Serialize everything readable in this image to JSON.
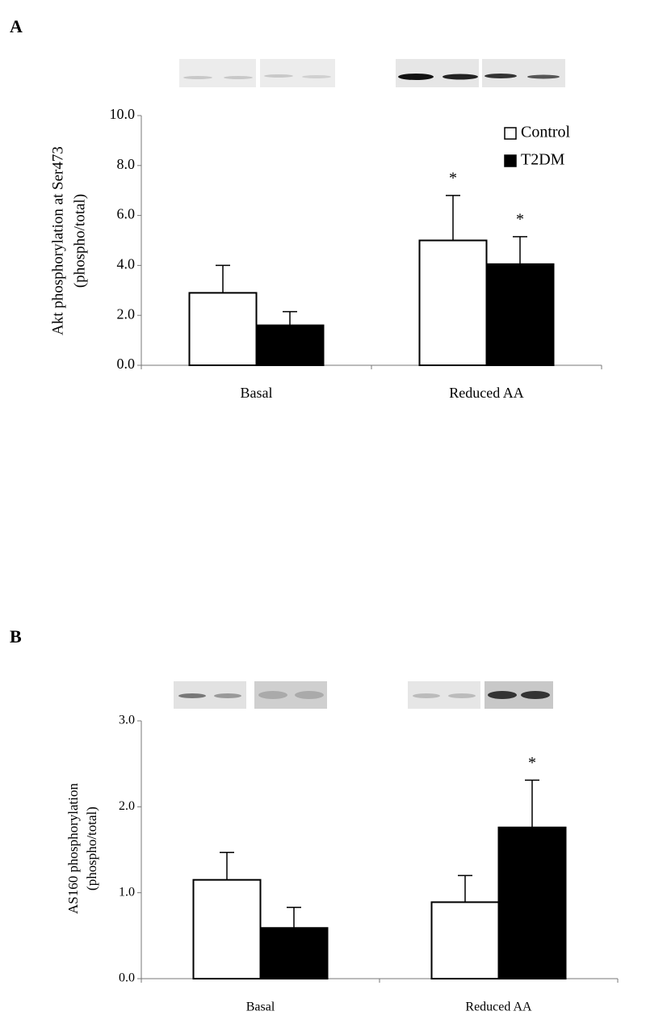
{
  "chart_data": [
    {
      "type": "bar",
      "panel_label": "A",
      "y_label": [
        "Akt phosphorylation at  Ser473",
        "(phospho/total)"
      ],
      "categories": [
        "Basal",
        "Reduced AA"
      ],
      "series": [
        {
          "name": "Control",
          "color": "#ffffff",
          "values": [
            2.9,
            5.0
          ],
          "errors": [
            1.1,
            1.8
          ],
          "markers": [
            null,
            "*"
          ]
        },
        {
          "name": "T2DM",
          "color": "#000000",
          "values": [
            1.6,
            4.05
          ],
          "errors": [
            0.55,
            1.1
          ],
          "markers": [
            null,
            "*"
          ]
        }
      ],
      "ylim": [
        0,
        10
      ],
      "yticks": [
        {
          "value": 0,
          "label": "0.0"
        },
        {
          "value": 2,
          "label": "2.0"
        },
        {
          "value": 4,
          "label": "4.0"
        },
        {
          "value": 6,
          "label": "6.0"
        },
        {
          "value": 8,
          "label": "8.0"
        },
        {
          "value": 10,
          "label": "10.0"
        }
      ],
      "legend": "top-right",
      "grid": false
    },
    {
      "type": "bar",
      "panel_label": "B",
      "y_label": [
        "AS160 phosphorylation",
        "(phospho/total)"
      ],
      "categories": [
        "Basal",
        "Reduced AA"
      ],
      "series": [
        {
          "color": "#ffffff",
          "values": [
            1.15,
            0.89
          ],
          "errors": [
            0.32,
            0.31
          ],
          "markers": [
            null,
            null
          ]
        },
        {
          "color": "#000000",
          "values": [
            0.59,
            1.76
          ],
          "errors": [
            0.24,
            0.55
          ],
          "markers": [
            null,
            "*"
          ]
        }
      ],
      "ylim": [
        0,
        3
      ],
      "yticks": [
        {
          "value": 0,
          "label": "0.0"
        },
        {
          "value": 1,
          "label": "1.0"
        },
        {
          "value": 2,
          "label": "2.0"
        },
        {
          "value": 3,
          "label": "3.0"
        }
      ],
      "legend": null,
      "grid": false
    }
  ]
}
